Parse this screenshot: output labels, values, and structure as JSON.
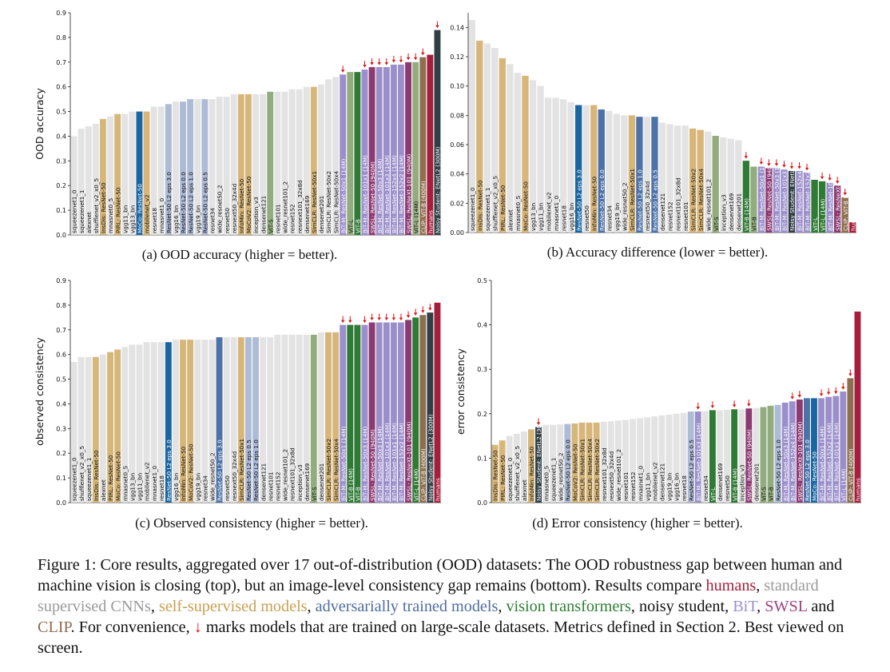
{
  "colors": {
    "standard": "#e3e3e3",
    "self": "#d7b67a",
    "adv": "#aebbd6",
    "adv_dark": "#4c72a8",
    "vit": "#2f7a34",
    "vit_light": "#92ad7d",
    "bit": "#9b8fcb",
    "swsl": "#8c3a72",
    "clip": "#8d6e4f",
    "noisy": "#2f3f45",
    "humans": "#a51e3d",
    "moco_blue": "#1a66a0",
    "arrow": "#dd1111"
  },
  "chart_data": [
    {
      "id": "a",
      "type": "bar",
      "caption": "(a) OOD accuracy (higher = better).",
      "ylabel": "OOD accuracy",
      "ylim": [
        0,
        0.9
      ],
      "yticks": [
        "0.0",
        "0.1",
        "0.2",
        "0.3",
        "0.4",
        "0.5",
        "0.6",
        "0.7",
        "0.8",
        "0.9"
      ],
      "categories": [
        "squeezenet1_0",
        "squeezenet1_1",
        "alexnet",
        "shufflenet_v2_x0_5",
        "InsDis: ResNet-50",
        "mnasnet0_5",
        "PIRL: ResNet-50",
        "vgg11_bn",
        "vgg13_bn",
        "MoCo: ResNet-50",
        "mobilenet_v2",
        "resnet18",
        "mnasnet1_0",
        "ResNet-50 L2 eps 3.0",
        "vgg16_bn",
        "ResNet-50 L2 eps 0.0",
        "ResNet-50 L2 eps 1.0",
        "vgg19_bn",
        "ResNet-50 L2 eps 0.5",
        "resnet34",
        "wide_resnet50_2",
        "resnet50",
        "resnext50_32x4d",
        "InfoMin: ResNet-50",
        "MoCoV2: ResNet-50",
        "inception_v3",
        "densenet121",
        "ViT-S",
        "resnet101",
        "wide_resnet101_2",
        "resnet152",
        "resnext101_32x8d",
        "densenet169",
        "SimCLR: ResNet-50x1",
        "densenet201",
        "SimCLR: ResNet-50x2",
        "SimCLR: ResNet-50x4",
        "BiT-M: ResNet-50x1 (14M)",
        "ViT-L",
        "ViT-B",
        "BiT-M: ResNet-101x1 (14M)",
        "SWSL: ResNet-50 (940M)",
        "BiT-M: ResNet-50x3 (14M)",
        "BiT-M: ResNet-101x3 (14M)",
        "BiT-M: ResNet-152x4 (14M)",
        "BiT-M: ResNet-152x2 (14M)",
        "SWSL: ResNeXt-101 (940M)",
        "ViT-L (14M)",
        "CLIP: ViT-B (400M)",
        "humans",
        "Noisy Student: ENetL2 (300M)"
      ],
      "values": [
        0.4,
        0.43,
        0.44,
        0.45,
        0.47,
        0.48,
        0.49,
        0.49,
        0.5,
        0.5,
        0.5,
        0.52,
        0.52,
        0.53,
        0.54,
        0.54,
        0.55,
        0.55,
        0.55,
        0.55,
        0.56,
        0.56,
        0.57,
        0.57,
        0.57,
        0.57,
        0.57,
        0.58,
        0.58,
        0.58,
        0.59,
        0.59,
        0.6,
        0.6,
        0.61,
        0.63,
        0.64,
        0.65,
        0.66,
        0.66,
        0.67,
        0.68,
        0.68,
        0.68,
        0.69,
        0.69,
        0.7,
        0.7,
        0.72,
        0.73,
        0.83
      ],
      "groups": [
        "standard",
        "standard",
        "standard",
        "standard",
        "self",
        "standard",
        "self",
        "standard",
        "standard",
        "moco_blue",
        "self",
        "standard",
        "standard",
        "adv",
        "standard",
        "adv",
        "adv",
        "standard",
        "adv",
        "standard",
        "standard",
        "standard",
        "standard",
        "self",
        "self",
        "standard",
        "standard",
        "vit_light",
        "standard",
        "standard",
        "standard",
        "standard",
        "standard",
        "self",
        "standard",
        "standard",
        "standard",
        "bit",
        "vit_light",
        "vit",
        "bit",
        "swsl",
        "bit",
        "bit",
        "bit",
        "bit",
        "swsl",
        "vit_light",
        "clip",
        "humans",
        "noisy"
      ],
      "arrows": [
        37,
        40,
        41,
        42,
        43,
        44,
        45,
        46,
        47,
        48,
        50
      ]
    },
    {
      "id": "b",
      "type": "bar",
      "caption": "(b) Accuracy difference (lower = better).",
      "ylabel": "accuracy difference",
      "ylim": [
        0,
        0.15
      ],
      "yticks": [
        "0.00",
        "0.02",
        "0.04",
        "0.06",
        "0.08",
        "0.10",
        "0.12",
        "0.14"
      ],
      "categories": [
        "squeezenet1_0",
        "InsDis: ResNet-50",
        "squeezenet1_1",
        "shufflenet_v2_x0_5",
        "PIRL: ResNet-50",
        "alexnet",
        "mnasnet0_5",
        "MoCo: ResNet-50",
        "vgg13_bn",
        "vgg11_bn",
        "mobilenet_v2",
        "mnasnet1_0",
        "resnet18",
        "vgg16_bn",
        "ResNet-50 L2 eps 3.0",
        "resnet50",
        "InfoMin: ResNet-50",
        "ResNet-50 L2 eps 0.0",
        "resnet34",
        "vgg19_bn",
        "wide_resnet50_2",
        "SimCLR: ResNet-50x1",
        "ResNet-50 L2 eps 1.0",
        "resnext50_32x4d",
        "ResNet-50 L2 eps 0.5",
        "densenet121",
        "resnet152",
        "resnext101_32x8d",
        "resnet101",
        "SimCLR: ResNet-50x2",
        "SimCLR: ResNet-50x4",
        "wide_resnet101_2",
        "ViT-S",
        "inception_v3",
        "densenet169",
        "densenet201",
        "ViT-B (14M)",
        "ViT-B",
        "BiT-M: ResNet-50x1 (14M)",
        "SWSL: ResNet-50 (940M)",
        "BiT-M: ResNet-50x3 (14M)",
        "BiT-M: ResNet-101x3 (14M)",
        "Noisy Student: ENetL2 (300M)",
        "BiT-M: ResNet-152x4 (14M)",
        "BiT-M: ResNet-152x2 (14M)",
        "ViT-L",
        "ViT-L (14M)",
        "BiT-M: ResNet-101x1 (14M)",
        "SWSL: ResNeXt-101 (940M)",
        "CLIP: ViT-B (400M)",
        "humans"
      ],
      "values": [
        0.145,
        0.131,
        0.129,
        0.126,
        0.119,
        0.115,
        0.109,
        0.107,
        0.104,
        0.1,
        0.092,
        0.092,
        0.091,
        0.089,
        0.087,
        0.087,
        0.087,
        0.084,
        0.083,
        0.081,
        0.08,
        0.08,
        0.079,
        0.079,
        0.079,
        0.075,
        0.074,
        0.073,
        0.073,
        0.071,
        0.07,
        0.069,
        0.066,
        0.065,
        0.064,
        0.063,
        0.049,
        0.045,
        0.045,
        0.044,
        0.044,
        0.043,
        0.042,
        0.042,
        0.041,
        0.036,
        0.035,
        0.034,
        0.032,
        0.024,
        0.007
      ],
      "groups": [
        "standard",
        "self",
        "standard",
        "standard",
        "self",
        "standard",
        "standard",
        "self",
        "standard",
        "standard",
        "standard",
        "standard",
        "standard",
        "standard",
        "moco_blue",
        "standard",
        "self",
        "adv_dark",
        "standard",
        "standard",
        "standard",
        "self",
        "adv_dark",
        "standard",
        "adv_dark",
        "standard",
        "standard",
        "standard",
        "standard",
        "self",
        "self",
        "standard",
        "vit_light",
        "standard",
        "standard",
        "standard",
        "vit",
        "vit_light",
        "bit",
        "swsl",
        "bit",
        "bit",
        "noisy",
        "bit",
        "bit",
        "vit",
        "vit",
        "bit",
        "swsl",
        "clip",
        "humans"
      ],
      "arrows": [
        36,
        38,
        39,
        40,
        41,
        42,
        43,
        44,
        46,
        47,
        48,
        49
      ]
    },
    {
      "id": "c",
      "type": "bar",
      "caption": "(c) Observed consistency (higher = better).",
      "ylabel": "observed consistency",
      "ylim": [
        0,
        0.9
      ],
      "yticks": [
        "0.0",
        "0.1",
        "0.2",
        "0.3",
        "0.4",
        "0.5",
        "0.6",
        "0.7",
        "0.8",
        "0.9"
      ],
      "categories": [
        "squeezenet1_0",
        "shufflenet_v2_x0_5",
        "squeezenet1_1",
        "InsDis: ResNet-50",
        "alexnet",
        "PIRL: ResNet-50",
        "MoCo: ResNet-50",
        "mnasnet0_5",
        "vgg13_bn",
        "vgg11_bn",
        "mobilenet_v2",
        "mnasnet1_0",
        "resnet18",
        "ResNet-50 L2 eps 3.0",
        "vgg16_bn",
        "InfoMin: ResNet-50",
        "MoCoV2: ResNet-50",
        "vgg19_bn",
        "resnet34",
        "wide_resnet50_2",
        "ResNet-50 L2 eps 3.0",
        "resnet50",
        "resnext50_32x4d",
        "SimCLR: ResNet-50x1",
        "ResNet-50 L2 eps 0.5",
        "ResNet-50 L2 eps 1.0",
        "densenet121",
        "resnet101",
        "resnet152",
        "wide_resnet101_2",
        "resnext101_32x8d",
        "inception_v3",
        "densenet169",
        "ViT-S",
        "densenet201",
        "SimCLR: ResNet-50x2",
        "SimCLR: ResNet-50x4",
        "BiT-M: ResNet-50x1 (14M)",
        "ViT-B (14M)",
        "ViT-B",
        "BiT-M: ResNet-50x3 (14M)",
        "SWSL: ResNet-50 (940M)",
        "BiT-M: ResNet-50x3 (14M)",
        "BiT-M: ResNet-101x3 (14M)",
        "BiT-M: ResNet-101x1 (14M)",
        "BiT-M: ResNet-152x2 (14M)",
        "SWSL: ResNeXt-101 (940M)",
        "ViT-L (14M)",
        "CLIP: ViT-B (400M)",
        "Noisy Student: ENetL2 (300M)",
        "humans"
      ],
      "values": [
        0.57,
        0.59,
        0.59,
        0.59,
        0.6,
        0.61,
        0.62,
        0.63,
        0.64,
        0.64,
        0.65,
        0.65,
        0.65,
        0.65,
        0.66,
        0.66,
        0.66,
        0.66,
        0.66,
        0.66,
        0.67,
        0.67,
        0.67,
        0.67,
        0.67,
        0.67,
        0.67,
        0.67,
        0.68,
        0.68,
        0.68,
        0.68,
        0.68,
        0.68,
        0.69,
        0.69,
        0.69,
        0.72,
        0.72,
        0.72,
        0.72,
        0.73,
        0.73,
        0.73,
        0.73,
        0.73,
        0.74,
        0.75,
        0.76,
        0.77,
        0.81
      ],
      "groups": [
        "standard",
        "standard",
        "standard",
        "self",
        "standard",
        "self",
        "self",
        "standard",
        "standard",
        "standard",
        "standard",
        "standard",
        "standard",
        "moco_blue",
        "standard",
        "self",
        "self",
        "standard",
        "standard",
        "standard",
        "adv_dark",
        "standard",
        "standard",
        "self",
        "adv",
        "adv",
        "standard",
        "standard",
        "standard",
        "standard",
        "standard",
        "standard",
        "standard",
        "vit_light",
        "standard",
        "self",
        "self",
        "bit",
        "vit",
        "vit",
        "bit",
        "swsl",
        "bit",
        "bit",
        "bit",
        "bit",
        "swsl",
        "vit",
        "clip",
        "noisy",
        "humans"
      ],
      "arrows": [
        37,
        38,
        40,
        41,
        42,
        43,
        44,
        45,
        46,
        47,
        48,
        49
      ]
    },
    {
      "id": "d",
      "type": "bar",
      "caption": "(d) Error consistency (higher = better).",
      "ylabel": "error consistency",
      "ylim": [
        0,
        0.5
      ],
      "yticks": [
        "0.0",
        "0.1",
        "0.2",
        "0.3",
        "0.4",
        "0.5"
      ],
      "categories": [
        "InsDis: ResNet-50",
        "PIRL: ResNet-50",
        "squeezenet1_0",
        "shufflenet_v2_x0_5",
        "alexnet",
        "InfoMin: ResNet-50",
        "Noisy Student: ENetL2 (300M)",
        "mnasnet0_5",
        "squeezenet1_1",
        "wide_resnet50_2",
        "ResNet-50 L2 eps 0.0",
        "MoCoV2: ResNet-50",
        "SimCLR: ResNet-50x1",
        "SimCLR: ResNet-50x4",
        "SimCLR: ResNet-50x2",
        "resnext101_32x8d",
        "resnext50_32x4d",
        "wide_resnet101_2",
        "resnet101",
        "resnet152",
        "mnasnet1_0",
        "vgg11_bn",
        "mobilenet_v2",
        "densenet121",
        "vgg19_bn",
        "vgg16_bn",
        "resnet18",
        "ResNet-50 L2 eps 0.5",
        "BiT-M: ResNet-101x3 (14M)",
        "resnet34",
        "ViT-L",
        "densenet169",
        "resnet50",
        "ViT-B (14M)",
        "inception_v3",
        "SWSL: ResNet-50 (940M)",
        "densenet201",
        "ViT-S",
        "ViT-B",
        "ResNet-50 L2 eps 1.0",
        "BiT-M: ResNet-50x3 (14M)",
        "BiT-M: ResNet-152x4 (14M)",
        "SWSL: ResNeXt-101 (940M)",
        "ResNet-50 L2 eps 3.0",
        "MoCo: ResNet-50",
        "BiT-M: ResNet-50x1 (14M)",
        "BiT-M: ResNet-152x2 (14M)",
        "BiT-M: ResNet-101x1 (14M)",
        "ViT-L (14M)",
        "CLIP: ViT-B (400M)",
        "humans"
      ],
      "values": [
        0.13,
        0.14,
        0.15,
        0.155,
        0.16,
        0.165,
        0.17,
        0.175,
        0.175,
        0.176,
        0.177,
        0.178,
        0.18,
        0.18,
        0.18,
        0.182,
        0.183,
        0.185,
        0.186,
        0.188,
        0.19,
        0.192,
        0.194,
        0.196,
        0.198,
        0.2,
        0.202,
        0.205,
        0.205,
        0.206,
        0.208,
        0.208,
        0.209,
        0.21,
        0.21,
        0.212,
        0.213,
        0.215,
        0.218,
        0.22,
        0.225,
        0.228,
        0.232,
        0.235,
        0.235,
        0.235,
        0.238,
        0.24,
        0.25,
        0.28,
        0.43
      ],
      "groups": [
        "self",
        "self",
        "standard",
        "standard",
        "standard",
        "self",
        "noisy",
        "standard",
        "standard",
        "standard",
        "adv",
        "self",
        "self",
        "self",
        "self",
        "standard",
        "standard",
        "standard",
        "standard",
        "standard",
        "standard",
        "standard",
        "standard",
        "standard",
        "standard",
        "standard",
        "standard",
        "adv",
        "bit",
        "standard",
        "vit",
        "standard",
        "standard",
        "vit",
        "standard",
        "swsl",
        "standard",
        "vit_light",
        "vit_light",
        "adv",
        "bit",
        "bit",
        "swsl",
        "adv_dark",
        "moco_blue",
        "bit",
        "bit",
        "bit",
        "bit",
        "clip",
        "humans"
      ],
      "arrows": [
        6,
        28,
        30,
        33,
        35,
        41,
        42,
        45,
        46,
        47,
        48,
        49
      ]
    }
  ],
  "figure_caption": {
    "p1": "Figure 1: Core results, aggregated over 17 out-of-distribution (OOD) datasets: The OOD robustness gap between human and machine vision is closing (top), but an image-level consistency gap remains (bottom). Results compare ",
    "humans": "humans",
    "sep1": ", ",
    "std": "standard supervised CNNs",
    "sep2": ", ",
    "self": "self-supervised models",
    "sep3": ", ",
    "adv": "adversarially trained models",
    "sep4": ", ",
    "vit": "vision transformers",
    "sep5": ", noisy student, ",
    "bit": "BiT",
    "sep6": ", ",
    "swsl": "SWSL",
    "sep7": " and ",
    "clip": "CLIP",
    "sep8": ". For convenience, ",
    "arrow": "↓",
    "p2": " marks models that are trained on large-scale datasets. Metrics defined in Section 2. Best viewed on screen."
  }
}
